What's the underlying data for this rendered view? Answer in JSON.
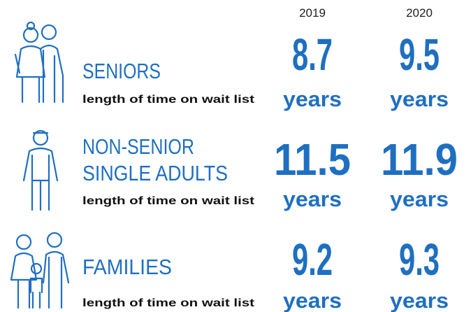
{
  "columns": [
    "2019",
    "2020"
  ],
  "rows": [
    {
      "label": [
        "SENIORS"
      ],
      "subtitle": "length of time on wait list",
      "values": [
        {
          "value": "8.7",
          "unit": "years"
        },
        {
          "value": "9.5",
          "unit": "years"
        }
      ]
    },
    {
      "label": [
        "NON-SENIOR",
        "SINGLE ADULTS"
      ],
      "subtitle": "length of time on wait list",
      "values": [
        {
          "value": "11.5",
          "unit": "years"
        },
        {
          "value": "11.9",
          "unit": "years"
        }
      ]
    },
    {
      "label": [
        "FAMILIES"
      ],
      "subtitle": "length of time on wait list",
      "values": [
        {
          "value": "9.2",
          "unit": "years"
        },
        {
          "value": "9.3",
          "unit": "years"
        }
      ]
    }
  ]
}
